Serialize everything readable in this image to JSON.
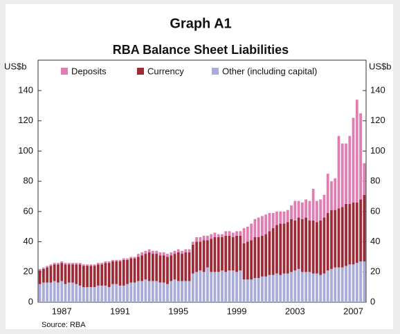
{
  "chart_data": {
    "type": "stacked_bar",
    "title": "Graph A1",
    "subtitle": "RBA Balance Sheet Liabilities",
    "y_label": "US$b",
    "y2_label": "US$b",
    "source": "Source: RBA",
    "categories": [
      null,
      null,
      null,
      null,
      null,
      null,
      "1987",
      null,
      null,
      null,
      null,
      null,
      null,
      null,
      null,
      null,
      null,
      null,
      null,
      null,
      null,
      null,
      "1991",
      null,
      null,
      null,
      null,
      null,
      null,
      null,
      null,
      null,
      null,
      null,
      null,
      null,
      null,
      null,
      "1995",
      null,
      null,
      null,
      null,
      null,
      null,
      null,
      null,
      null,
      null,
      null,
      null,
      null,
      null,
      null,
      "1999",
      null,
      null,
      null,
      null,
      null,
      null,
      null,
      null,
      null,
      null,
      null,
      null,
      null,
      null,
      null,
      "2003",
      null,
      null,
      null,
      null,
      null,
      null,
      null,
      null,
      null,
      null,
      null,
      null,
      null,
      null,
      null,
      "2007",
      null,
      null,
      null
    ],
    "series": [
      {
        "name": "Other (including capital)",
        "color": "#a9abd9",
        "values": [
          12,
          13,
          13,
          13,
          14,
          13,
          14,
          12,
          13,
          13,
          12,
          11,
          10,
          10,
          10,
          10,
          11,
          11,
          11,
          10,
          12,
          12,
          11,
          11,
          12,
          13,
          13,
          14,
          14,
          15,
          14,
          14,
          14,
          13,
          13,
          12,
          14,
          15,
          14,
          14,
          14,
          14,
          19,
          20,
          21,
          20,
          23,
          20,
          20,
          20,
          21,
          20,
          21,
          21,
          20,
          21,
          15,
          15,
          15,
          16,
          16,
          17,
          17,
          18,
          18,
          19,
          18,
          19,
          19,
          20,
          21,
          22,
          20,
          20,
          20,
          19,
          19,
          18,
          19,
          21,
          22,
          23,
          23,
          23,
          24,
          25,
          25,
          26,
          27,
          27
        ]
      },
      {
        "name": "Currency",
        "color": "#9e2a36",
        "values": [
          9,
          9,
          10,
          11,
          11,
          12,
          12,
          13,
          12,
          12,
          13,
          14,
          14,
          14,
          14,
          14,
          14,
          14,
          15,
          16,
          15,
          15,
          16,
          17,
          16,
          16,
          16,
          16,
          17,
          17,
          19,
          18,
          18,
          18,
          18,
          18,
          17,
          17,
          19,
          18,
          19,
          19,
          19,
          20,
          19,
          21,
          18,
          22,
          23,
          23,
          22,
          24,
          23,
          22,
          24,
          23,
          24,
          25,
          26,
          27,
          27,
          27,
          28,
          29,
          31,
          32,
          34,
          33,
          34,
          35,
          33,
          34,
          35,
          36,
          34,
          35,
          34,
          36,
          37,
          38,
          39,
          38,
          39,
          40,
          41,
          40,
          41,
          40,
          41,
          44
        ]
      },
      {
        "name": "Deposits",
        "color": "#e07db3",
        "values": [
          1,
          1,
          1,
          1,
          1,
          1,
          1,
          1,
          1,
          1,
          1,
          1,
          1,
          1,
          1,
          1,
          1,
          1,
          1,
          1,
          1,
          1,
          1,
          1,
          1,
          1,
          1,
          2,
          2,
          2,
          2,
          2,
          2,
          2,
          2,
          2,
          2,
          2,
          2,
          2,
          2,
          2,
          2,
          3,
          3,
          3,
          3,
          3,
          3,
          2,
          2,
          3,
          3,
          3,
          3,
          3,
          10,
          10,
          11,
          12,
          13,
          13,
          13,
          12,
          10,
          9,
          8,
          8,
          8,
          9,
          13,
          11,
          11,
          12,
          13,
          21,
          14,
          14,
          15,
          26,
          19,
          21,
          48,
          42,
          40,
          45,
          56,
          68,
          57,
          21
        ]
      }
    ],
    "legend_order": [
      2,
      1,
      0
    ],
    "ylim": [
      0,
      140
    ],
    "yticks": [
      0,
      20,
      40,
      60,
      80,
      100,
      120,
      140
    ]
  }
}
